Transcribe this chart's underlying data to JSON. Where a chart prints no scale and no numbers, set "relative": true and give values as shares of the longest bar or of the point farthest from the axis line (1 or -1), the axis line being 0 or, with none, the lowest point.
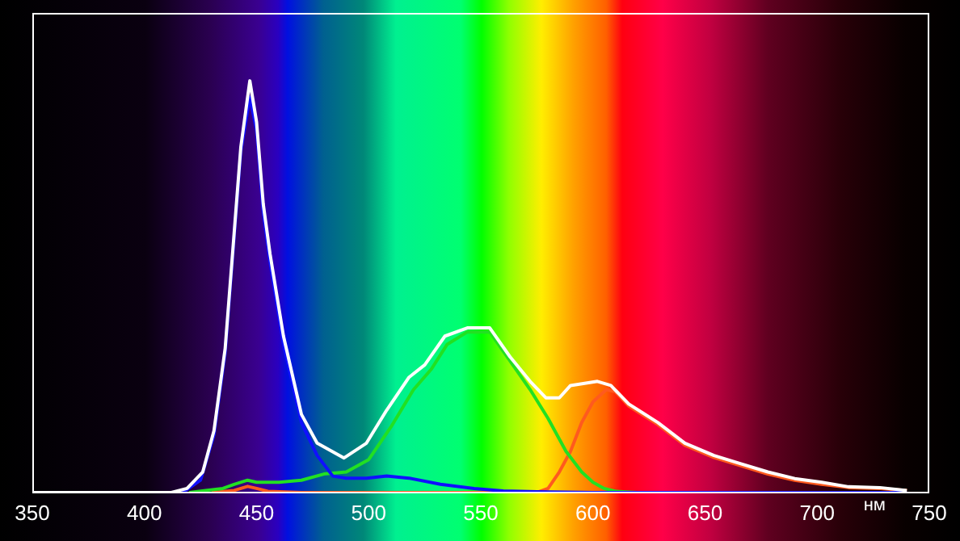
{
  "chart_data": {
    "type": "line",
    "relative": true,
    "xlabel": "нм",
    "xlim": [
      350,
      750
    ],
    "xticks": [
      350,
      400,
      450,
      500,
      550,
      600,
      650,
      700,
      750
    ],
    "grid": false,
    "legend": false,
    "marker": "none",
    "line_style": "solid",
    "series": [
      {
        "color": "#ff5a1e",
        "x": [
          430,
          440,
          446,
          450,
          455,
          470,
          575,
          580,
          585,
          590,
          595,
          600,
          606,
          610,
          616,
          629,
          641,
          654,
          666,
          678,
          690,
          702,
          714,
          728,
          740
        ],
        "values": [
          0,
          0.005,
          0.015,
          0.01,
          0.003,
          0,
          0,
          0.01,
          0.05,
          0.1,
          0.17,
          0.22,
          0.25,
          0.245,
          0.21,
          0.165,
          0.115,
          0.085,
          0.065,
          0.045,
          0.03,
          0.02,
          0.012,
          0.01,
          0.005
        ]
      },
      {
        "color": "#22e022",
        "x": [
          420,
          435,
          440,
          446,
          450,
          460,
          470,
          480,
          490,
          500,
          510,
          520,
          528,
          535,
          544,
          550,
          554,
          563,
          572,
          580,
          588,
          595,
          600,
          605,
          610,
          620
        ],
        "values": [
          0,
          0.01,
          0.02,
          0.03,
          0.025,
          0.025,
          0.03,
          0.045,
          0.05,
          0.08,
          0.16,
          0.25,
          0.3,
          0.36,
          0.39,
          0.39,
          0.39,
          0.32,
          0.25,
          0.18,
          0.1,
          0.05,
          0.025,
          0.01,
          0.003,
          0
        ]
      },
      {
        "color": "#1010ff",
        "x": [
          417,
          425,
          431,
          436,
          440,
          443,
          447,
          450,
          453,
          456,
          462,
          470,
          477,
          484,
          490,
          499,
          508,
          518,
          532,
          547,
          560,
          575,
          600,
          740
        ],
        "values": [
          0,
          0.03,
          0.14,
          0.34,
          0.62,
          0.83,
          0.96,
          0.88,
          0.68,
          0.56,
          0.36,
          0.17,
          0.09,
          0.04,
          0.035,
          0.035,
          0.04,
          0.035,
          0.02,
          0.01,
          0.004,
          0.002,
          0,
          0
        ]
      },
      {
        "color": "#ffffff",
        "x": [
          350,
          412,
          419,
          426,
          431,
          436,
          440,
          443,
          447,
          450,
          453,
          456,
          462,
          470,
          477,
          489,
          499,
          508,
          518,
          525,
          534,
          544,
          550,
          554,
          563,
          572,
          579,
          585,
          590,
          602,
          608,
          616,
          629,
          641,
          654,
          666,
          678,
          690,
          702,
          714,
          728,
          740
        ],
        "values": [
          0,
          0,
          0.01,
          0.05,
          0.15,
          0.35,
          0.63,
          0.84,
          1,
          0.9,
          0.7,
          0.58,
          0.38,
          0.19,
          0.12,
          0.084,
          0.12,
          0.2,
          0.28,
          0.31,
          0.38,
          0.4,
          0.4,
          0.4,
          0.33,
          0.27,
          0.23,
          0.23,
          0.26,
          0.27,
          0.26,
          0.215,
          0.17,
          0.12,
          0.09,
          0.07,
          0.05,
          0.034,
          0.025,
          0.014,
          0.012,
          0.005
        ]
      }
    ]
  }
}
